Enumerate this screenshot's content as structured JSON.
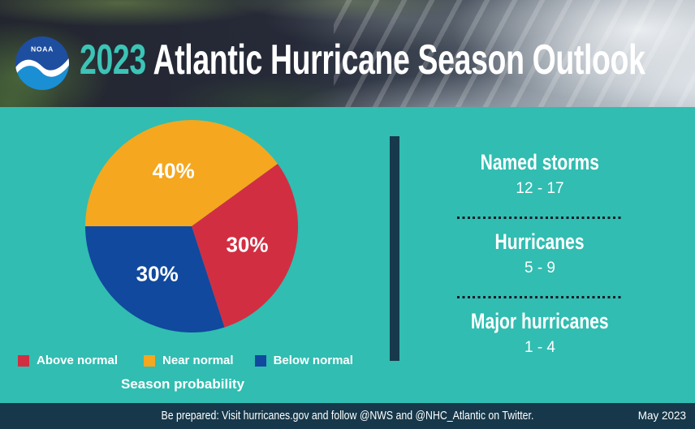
{
  "header": {
    "logo_text": "NOAA",
    "title_year": "2023",
    "title_main": "Atlantic Hurricane Season Outlook"
  },
  "chart_data": {
    "type": "pie",
    "title": "Season probability",
    "unit": "%",
    "start_angle_deg": 270,
    "slices": [
      {
        "label": "Near normal",
        "value": 40,
        "display": "40%",
        "color": "#f5a71f"
      },
      {
        "label": "Above normal",
        "value": 30,
        "display": "30%",
        "color": "#d22e42"
      },
      {
        "label": "Below normal",
        "value": 30,
        "display": "30%",
        "color": "#10499e"
      }
    ],
    "legend": [
      {
        "label": "Above normal",
        "color": "#d22e42"
      },
      {
        "label": "Near normal",
        "color": "#f5a71f"
      },
      {
        "label": "Below normal",
        "color": "#10499e"
      }
    ],
    "legend_position": "bottom"
  },
  "outlook_panel": {
    "sections": [
      {
        "title": "Named storms",
        "range": "12 - 17"
      },
      {
        "title": "Hurricanes",
        "range": "5 - 9"
      },
      {
        "title": "Major hurricanes",
        "range": "1 - 4"
      }
    ]
  },
  "footer": {
    "message": "Be prepared: Visit hurricanes.gov and follow @NWS and @NHC_Atlantic on Twitter.",
    "date": "May 2023"
  },
  "colors": {
    "background_teal": "#31bdb1",
    "title_year_teal": "#3cc4b6",
    "navy": "#16394b",
    "above_normal": "#d22e42",
    "near_normal": "#f5a71f",
    "below_normal": "#10499e"
  }
}
